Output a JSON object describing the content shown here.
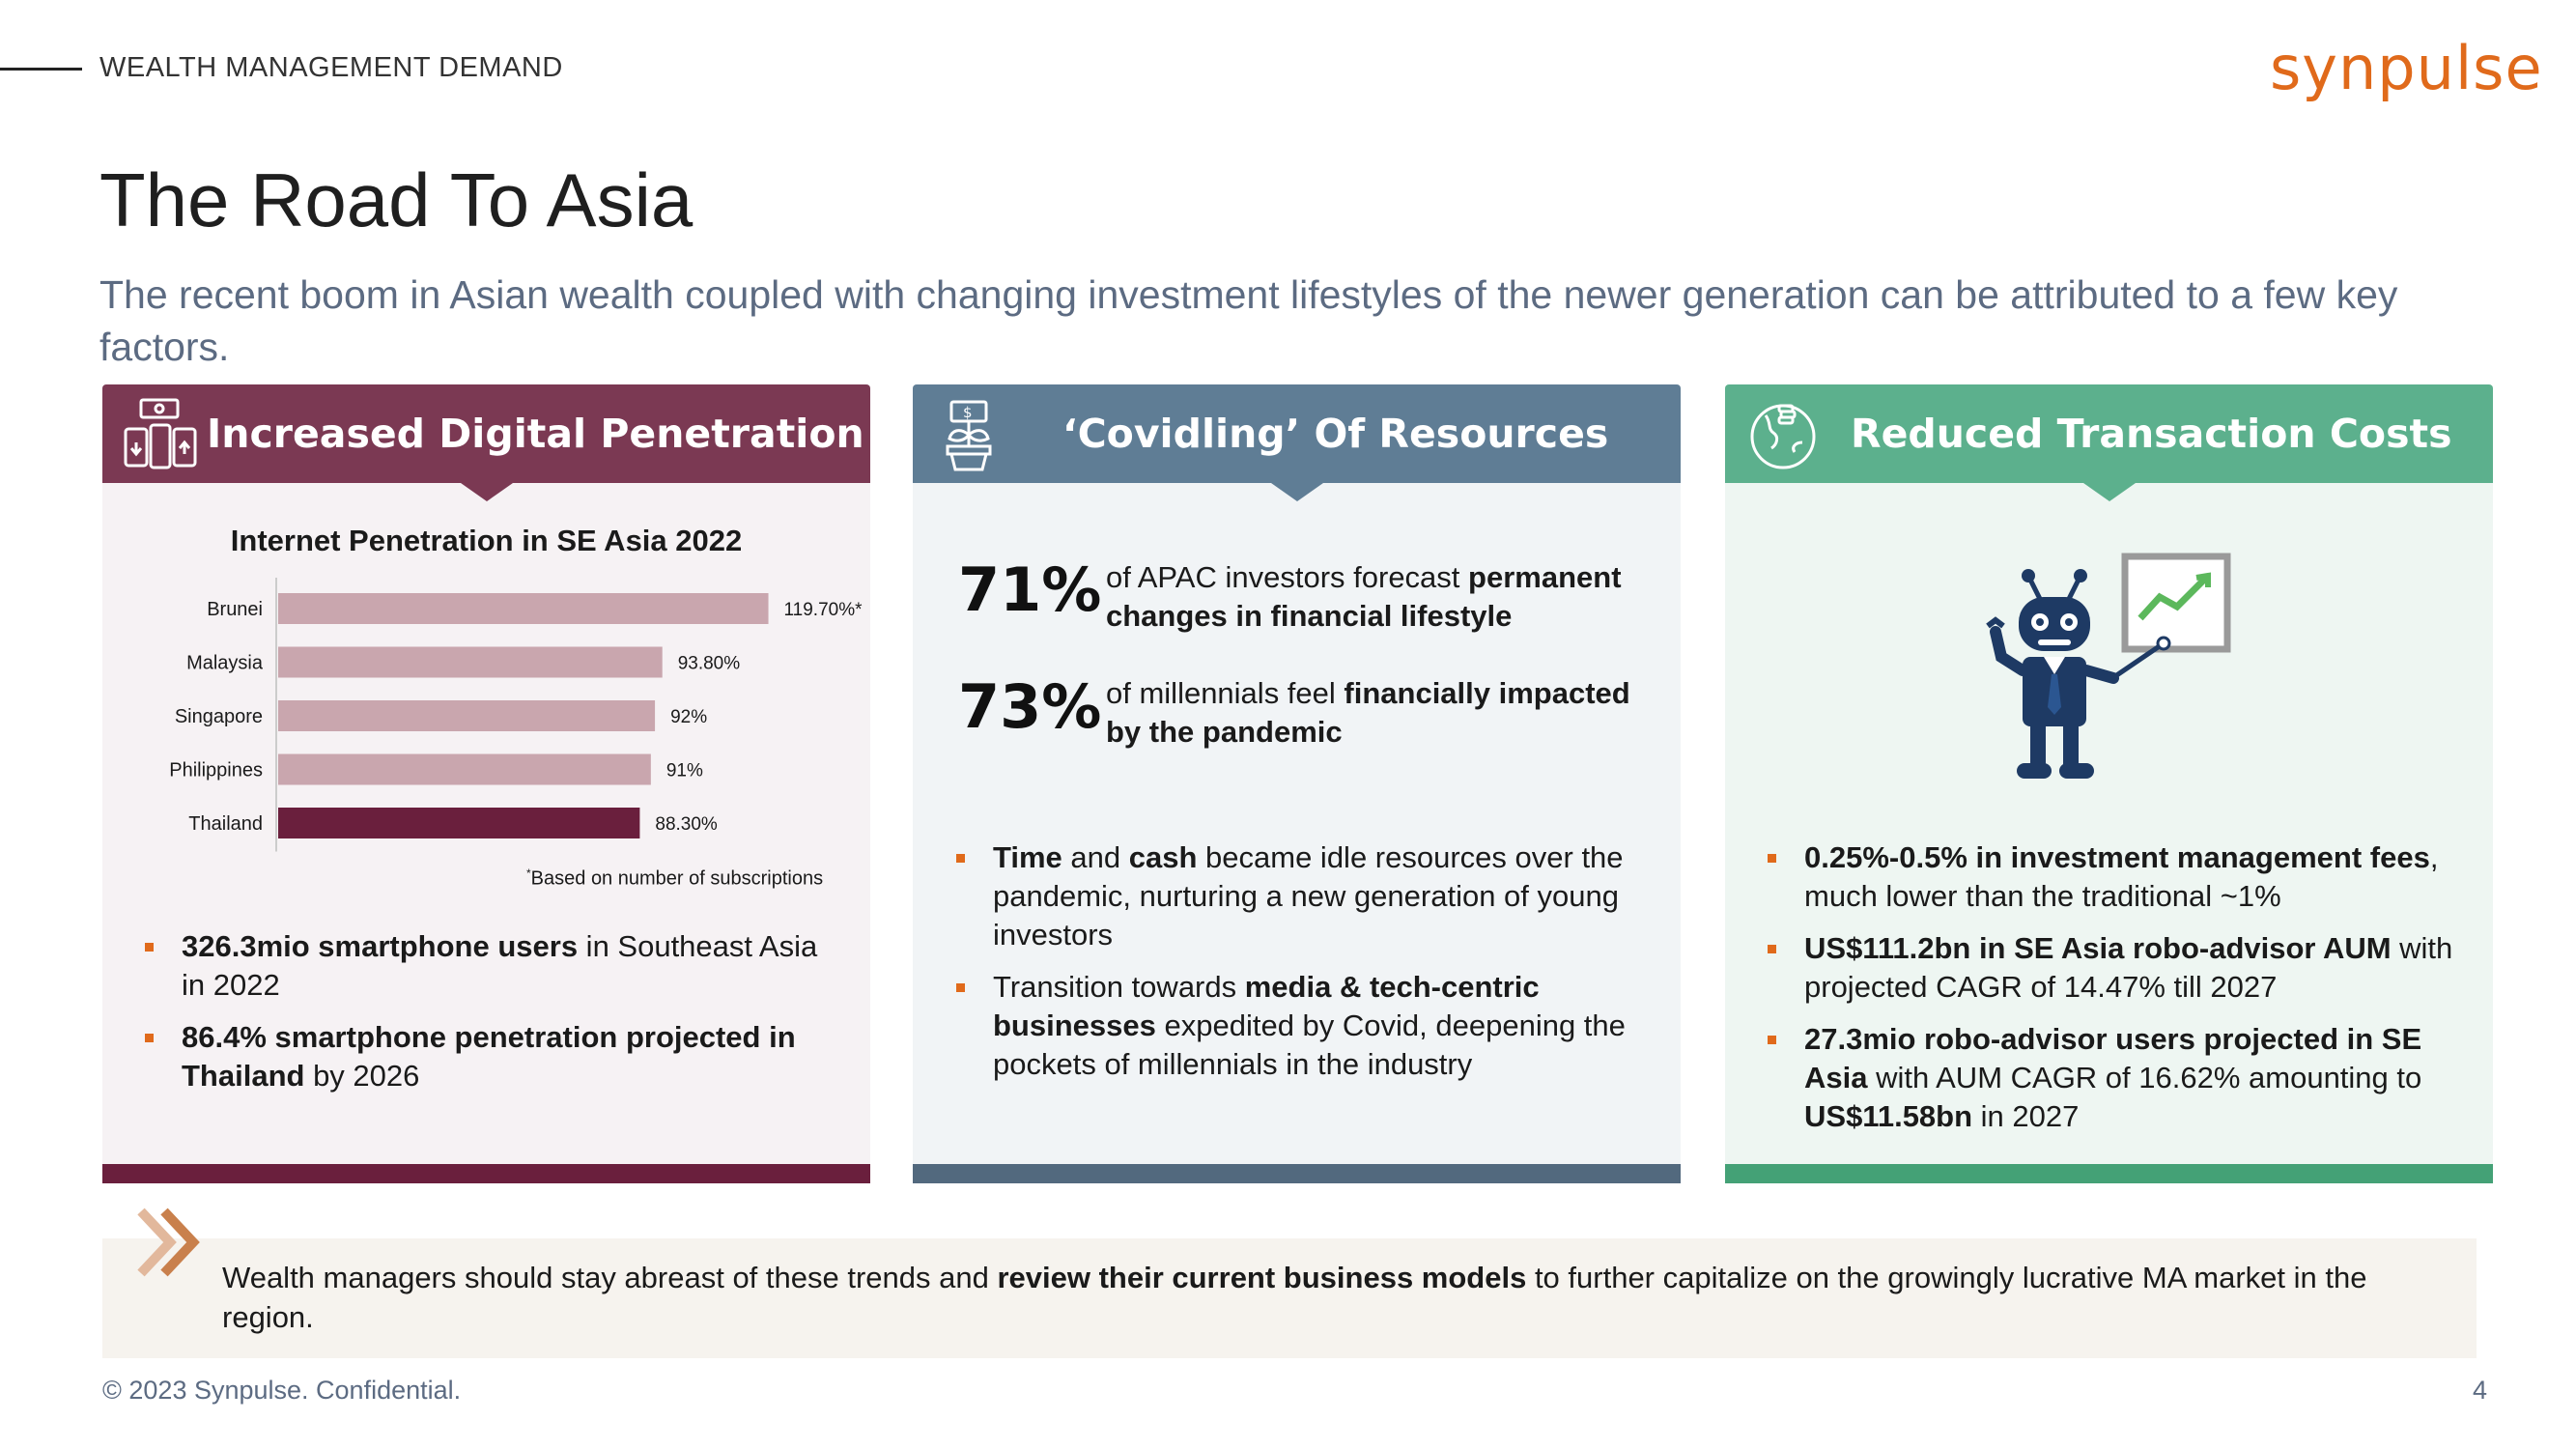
{
  "header": {
    "section_label": "WEALTH MANAGEMENT DEMAND",
    "logo_text": "synpulse"
  },
  "title": "The Road To Asia",
  "subtitle": "The recent boom in Asian wealth coupled with changing investment lifestyles of the newer generation can be attributed to a few key factors.",
  "panels": [
    {
      "heading": "Increased Digital Penetration",
      "icon": "devices-money-icon",
      "accent_color": "#7b3953",
      "bullets": [
        {
          "bold": "326.3mio smartphone users",
          "rest": " in Southeast Asia in 2022"
        },
        {
          "bold": "86.4% smartphone penetration projected in Thailand",
          "rest": " by 2026"
        }
      ]
    },
    {
      "heading": "‘Covidling’ Of Resources",
      "icon": "money-plant-icon",
      "accent_color": "#5f7d95",
      "stats": [
        {
          "value": "71%",
          "text_plain": "of APAC investors forecast ",
          "text_bold": "permanent changes in financial lifestyle"
        },
        {
          "value": "73%",
          "text_plain": "of millennials feel ",
          "text_bold": "financially impacted by the pandemic"
        }
      ],
      "bullets": [
        {
          "b1": "Time",
          "t1": " and ",
          "b2": "cash",
          "t2": " became idle resources over the pandemic, nurturing a new generation of young investors"
        },
        {
          "t0": "Transition towards ",
          "b1": "media & tech-centric businesses",
          "t1": " expedited by Covid, deepening the pockets of millennials in the industry"
        }
      ]
    },
    {
      "heading": "Reduced Transaction Costs",
      "icon": "globe-coins-icon",
      "accent_color": "#5cb08d",
      "illustration": "robot-advisor-icon",
      "bullets": [
        {
          "bold": "0.25%-0.5% in investment management fees",
          "rest": ", much lower than the traditional ~1%"
        },
        {
          "bold": "US$111.2bn in SE Asia robo-advisor AUM",
          "rest": " with projected CAGR of 14.47% till 2027"
        },
        {
          "bold": "27.3mio robo-advisor users projected in SE Asia",
          "rest": " with AUM CAGR of 16.62% amounting to ",
          "bold2": "US$11.58bn",
          "rest2": " in 2027"
        }
      ]
    }
  ],
  "chart_data": {
    "type": "bar",
    "orientation": "horizontal",
    "title": "Internet Penetration in SE Asia 2022",
    "categories": [
      "Brunei",
      "Malaysia",
      "Singapore",
      "Philippines",
      "Thailand"
    ],
    "values": [
      119.7,
      93.8,
      92,
      91,
      88.3
    ],
    "value_labels": [
      "119.70%*",
      "93.80%",
      "92%",
      "91%",
      "88.30%"
    ],
    "highlight_category": "Thailand",
    "colors": {
      "default": "#c9a6ae",
      "highlight": "#6a1f3d"
    },
    "xlim": [
      0,
      125
    ],
    "grid": false,
    "footnote_mark": "*",
    "footnote": "Based on number of subscriptions"
  },
  "banner": {
    "text_plain_1": "Wealth managers should stay abreast of these trends and ",
    "text_bold": "review their current business models",
    "text_plain_2": " to further capitalize on the growingly lucrative MA market in the region."
  },
  "footer": {
    "copyright": "© 2023 Synpulse. Confidential.",
    "page_number": "4"
  }
}
